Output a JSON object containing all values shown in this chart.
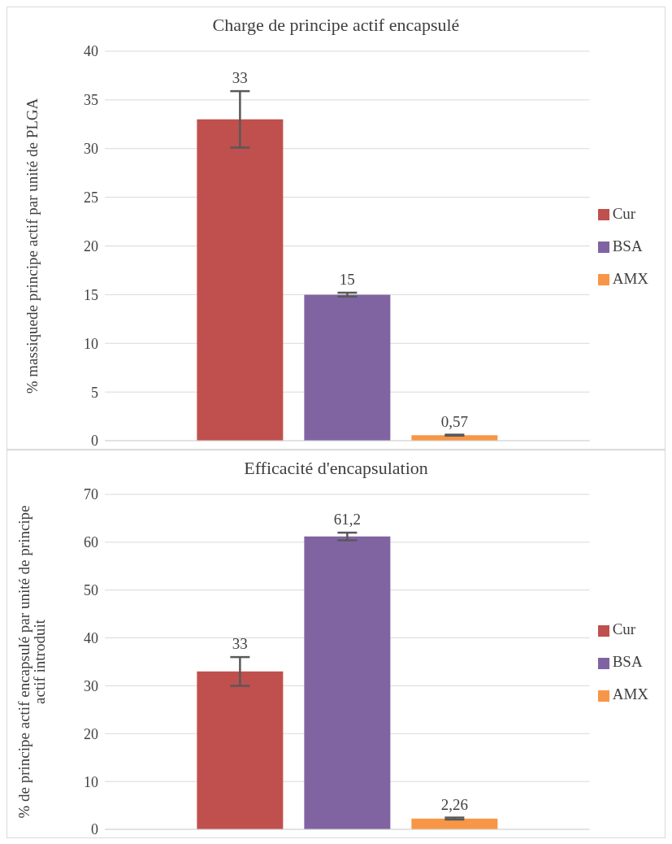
{
  "chart_data": [
    {
      "type": "bar",
      "title": "Charge de principe actif encapsulé",
      "ylabel": "% massiquede  principe actif par unité de PLGA",
      "categories": [
        null
      ],
      "series": [
        {
          "name": "Cur",
          "color": "#c0504d",
          "values": [
            33
          ],
          "errors": [
            2.9
          ],
          "value_labels": [
            "33"
          ]
        },
        {
          "name": "BSA",
          "color": "#8064a2",
          "values": [
            15
          ],
          "errors": [
            0.2
          ],
          "value_labels": [
            "15"
          ]
        },
        {
          "name": "AMX",
          "color": "#f79646",
          "values": [
            0.57
          ],
          "errors": [
            0.05
          ],
          "value_labels": [
            "0,57"
          ]
        }
      ],
      "ylim": [
        0,
        40
      ],
      "yticks": [
        0,
        5,
        10,
        15,
        20,
        25,
        30,
        35,
        40
      ],
      "grid": "y",
      "legend": "right",
      "tick_labels": "y"
    },
    {
      "type": "bar",
      "title": "Efficacité d'encapsulation",
      "ylabel": "% de principe actif encapsulé  par unité de principe actif introduit",
      "categories": [
        null
      ],
      "series": [
        {
          "name": "Cur",
          "color": "#c0504d",
          "values": [
            33
          ],
          "errors": [
            3
          ],
          "value_labels": [
            "33"
          ]
        },
        {
          "name": "BSA",
          "color": "#8064a2",
          "values": [
            61.2
          ],
          "errors": [
            0.8
          ],
          "value_labels": [
            "61,2"
          ]
        },
        {
          "name": "AMX",
          "color": "#f79646",
          "values": [
            2.26
          ],
          "errors": [
            0.2
          ],
          "value_labels": [
            "2,26"
          ]
        }
      ],
      "ylim": [
        0,
        70
      ],
      "yticks": [
        0,
        10,
        20,
        30,
        40,
        50,
        60,
        70
      ],
      "grid": "y",
      "legend": "right",
      "tick_labels": "y"
    }
  ]
}
